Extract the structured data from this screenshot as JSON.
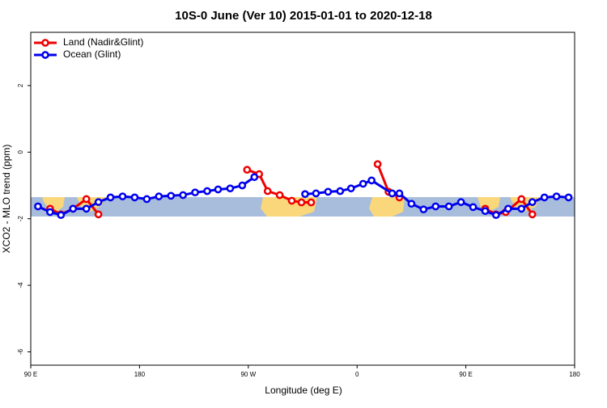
{
  "chart_data": {
    "type": "line",
    "title": "10S-0 June (Ver 10)   2015-01-01 to 2020-12-18",
    "x_label": "Longitude (deg E)",
    "y_label": "XCO2 - MLO trend (ppm)",
    "xlim": [
      90,
      540
    ],
    "xticks": [
      {
        "value": 90,
        "label": "90 E"
      },
      {
        "value": 180,
        "label": "180"
      },
      {
        "value": 270,
        "label": "90 W"
      },
      {
        "value": 360,
        "label": "0"
      },
      {
        "value": 450,
        "label": "90 E"
      },
      {
        "value": 540,
        "label": "180"
      }
    ],
    "ylim": [
      -6.4,
      3.6
    ],
    "yticks": [
      -6,
      -4,
      -2,
      0,
      2
    ],
    "legend": "top-left",
    "series": [
      {
        "name": "Land (Nadir&Glint)",
        "color": "#ee0000",
        "x": [
          106,
          115,
          125,
          136,
          146,
          null,
          269,
          279,
          286,
          296,
          306,
          314,
          322,
          null,
          377,
          386,
          395,
          null,
          466,
          475,
          483,
          496,
          505
        ],
        "values": [
          -1.7,
          -1.87,
          -1.7,
          -1.41,
          -1.87,
          null,
          -0.53,
          -0.66,
          -1.17,
          -1.29,
          -1.46,
          -1.51,
          -1.51,
          null,
          -0.36,
          -1.19,
          -1.36,
          null,
          -1.7,
          -1.87,
          -1.8,
          -1.41,
          -1.87
        ]
      },
      {
        "name": "Ocean (Glint)",
        "color": "#0000ee",
        "x": [
          96,
          106,
          115,
          125,
          136,
          146,
          156,
          166,
          176,
          186,
          196,
          206,
          216,
          226,
          236,
          245,
          255,
          265,
          275,
          null,
          317,
          326,
          336,
          346,
          355,
          365,
          372,
          389,
          395,
          405,
          415,
          425,
          436,
          446,
          456,
          466,
          475,
          485,
          496,
          505,
          515,
          525,
          535
        ],
        "values": [
          -1.63,
          -1.8,
          -1.89,
          -1.7,
          -1.7,
          -1.5,
          -1.36,
          -1.33,
          -1.36,
          -1.41,
          -1.33,
          -1.31,
          -1.29,
          -1.21,
          -1.17,
          -1.12,
          -1.09,
          -1.0,
          -0.75,
          null,
          -1.26,
          -1.24,
          -1.19,
          -1.17,
          -1.09,
          -0.95,
          -0.85,
          -1.24,
          -1.24,
          -1.55,
          -1.72,
          -1.63,
          -1.63,
          -1.5,
          -1.65,
          -1.77,
          -1.89,
          -1.7,
          -1.7,
          -1.5,
          -1.36,
          -1.33,
          -1.36
        ]
      }
    ]
  }
}
